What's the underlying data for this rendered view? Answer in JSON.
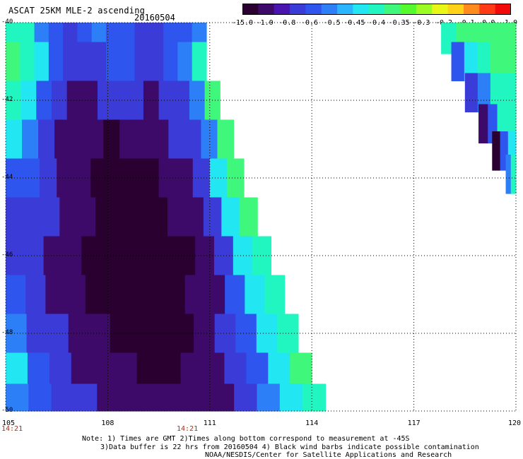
{
  "header": {
    "title": "ASCAT 25KM MLE-2 ascending",
    "date": "20160504"
  },
  "colorbar": {
    "labels": [
      "-15.0",
      "-1.0",
      "-0.8",
      "-0.6",
      "-0.5",
      "-0.45",
      "-0.4",
      "-0.35",
      "-0.3",
      "-0.2",
      "-0.1",
      "0.0",
      "1.0"
    ],
    "colors": [
      "#2a0030",
      "#3e0a6a",
      "#4a14b0",
      "#3b3bd8",
      "#2f55ef",
      "#2d7ff7",
      "#2ab6ff",
      "#22e6f2",
      "#22f6c0",
      "#3ff77a",
      "#54fa2e",
      "#9bfb22",
      "#e8f716",
      "#ffd21a",
      "#ff8b1c",
      "#ff3a14",
      "#f20a0a"
    ]
  },
  "chart_data": {
    "type": "heatmap",
    "title": "ASCAT 25KM MLE-2 ascending",
    "subtitle": "20160504",
    "xlabel": "",
    "ylabel": "",
    "xlim": [
      105,
      120
    ],
    "ylim": [
      -50,
      -40
    ],
    "x_ticks": [
      "105",
      "108",
      "111",
      "114",
      "117",
      "120"
    ],
    "y_ticks": [
      "-40",
      "-42",
      "-44",
      "-46",
      "-48",
      "-50"
    ],
    "grid": true,
    "times": [
      "14:21",
      "14:21"
    ],
    "swaths": [
      {
        "name": "",
        "rows": [
          {
            "lat": -40.2,
            "lon_start": 105.0,
            "lon_end": 110.9,
            "values": [
              -0.36,
              -0.4,
              -0.5,
              -0.6,
              -0.7,
              -0.6,
              -0.5,
              -0.55,
              -0.6,
              -0.65,
              -0.7,
              -0.6,
              -0.55,
              -0.5
            ]
          },
          {
            "lat": -41.0,
            "lon_start": 105.0,
            "lon_end": 110.9,
            "values": [
              -0.35,
              -0.37,
              -0.45,
              -0.6,
              -0.7,
              -0.75,
              -0.7,
              -0.6,
              -0.6,
              -0.7,
              -0.75,
              -0.6,
              -0.5,
              -0.4
            ]
          },
          {
            "lat": -42.0,
            "lon_start": 105.0,
            "lon_end": 111.3,
            "values": [
              -0.38,
              -0.42,
              -0.55,
              -0.8,
              -0.9,
              -0.85,
              -0.8,
              -0.75,
              -0.8,
              -0.85,
              -0.8,
              -0.7,
              -0.5,
              -0.35
            ]
          },
          {
            "lat": -43.0,
            "lon_start": 105.0,
            "lon_end": 111.7,
            "values": [
              -0.45,
              -0.5,
              -0.65,
              -0.85,
              -1.0,
              -1.0,
              -1.05,
              -1.0,
              -0.95,
              -0.9,
              -0.8,
              -0.7,
              -0.5,
              -0.35
            ]
          },
          {
            "lat": -44.0,
            "lon_start": 105.0,
            "lon_end": 112.0,
            "values": [
              -0.55,
              -0.6,
              -0.7,
              -0.85,
              -1.0,
              -1.05,
              -1.1,
              -1.1,
              -1.05,
              -0.95,
              -0.85,
              -0.7,
              -0.45,
              -0.35
            ]
          },
          {
            "lat": -45.0,
            "lon_start": 105.0,
            "lon_end": 112.4,
            "values": [
              -0.65,
              -0.7,
              -0.8,
              -0.9,
              -1.0,
              -1.1,
              -1.15,
              -1.1,
              -1.05,
              -1.0,
              -0.9,
              -0.7,
              -0.45,
              -0.35
            ]
          },
          {
            "lat": -46.0,
            "lon_start": 105.0,
            "lon_end": 112.8,
            "values": [
              -0.65,
              -0.75,
              -0.85,
              -0.95,
              -1.05,
              -1.1,
              -1.15,
              -1.15,
              -1.1,
              -1.05,
              -0.9,
              -0.7,
              -0.45,
              -0.38
            ]
          },
          {
            "lat": -47.0,
            "lon_start": 105.0,
            "lon_end": 113.2,
            "values": [
              -0.6,
              -0.7,
              -0.85,
              -0.95,
              -1.05,
              -1.1,
              -1.15,
              -1.15,
              -1.1,
              -1.0,
              -0.85,
              -0.6,
              -0.45,
              -0.38
            ]
          },
          {
            "lat": -48.0,
            "lon_start": 105.0,
            "lon_end": 113.6,
            "values": [
              -0.5,
              -0.65,
              -0.8,
              -0.9,
              -1.0,
              -1.05,
              -1.1,
              -1.1,
              -1.05,
              -0.95,
              -0.75,
              -0.55,
              -0.45,
              -0.36
            ]
          },
          {
            "lat": -49.0,
            "lon_start": 105.0,
            "lon_end": 114.0,
            "values": [
              -0.45,
              -0.55,
              -0.7,
              -0.85,
              -0.95,
              -1.0,
              -1.05,
              -1.05,
              -1.0,
              -0.9,
              -0.7,
              -0.55,
              -0.45,
              -0.35
            ]
          },
          {
            "lat": -49.8,
            "lon_start": 105.0,
            "lon_end": 114.4,
            "values": [
              -0.5,
              -0.6,
              -0.7,
              -0.8,
              -0.9,
              -0.95,
              -1.0,
              -1.0,
              -0.95,
              -0.85,
              -0.7,
              -0.5,
              -0.42,
              -0.36
            ]
          }
        ]
      },
      {
        "name": "",
        "rows": [
          {
            "lat": -40.3,
            "lon_start": 117.8,
            "lon_end": 120.0,
            "values": [
              -0.4,
              -0.35,
              -0.35,
              -0.35,
              -0.35
            ]
          },
          {
            "lat": -41.0,
            "lon_start": 118.1,
            "lon_end": 120.0,
            "values": [
              -0.6,
              -0.45,
              -0.4,
              -0.35,
              -0.35
            ]
          },
          {
            "lat": -41.8,
            "lon_start": 118.5,
            "lon_end": 120.0,
            "values": [
              -0.8,
              -0.5,
              -0.4,
              -0.37
            ]
          },
          {
            "lat": -42.6,
            "lon_start": 118.9,
            "lon_end": 120.0,
            "values": [
              -1.0,
              -0.6,
              -0.4,
              -0.38
            ]
          },
          {
            "lat": -43.3,
            "lon_start": 119.3,
            "lon_end": 120.0,
            "values": [
              -15.0,
              -0.6,
              -0.45
            ]
          },
          {
            "lat": -43.9,
            "lon_start": 119.7,
            "lon_end": 120.0,
            "values": [
              -0.5,
              -0.4
            ]
          }
        ]
      }
    ]
  },
  "footer": {
    "note_line1": "Note: 1) Times are GMT 2)Times along bottom correspond to measurement at -45S",
    "note_line2": "3)Data buffer is 22 hrs from 20160504 4) Black wind barbs indicate possible contamination",
    "note_line3": "NOAA/NESDIS/Center for Satellite Applications and Research"
  }
}
